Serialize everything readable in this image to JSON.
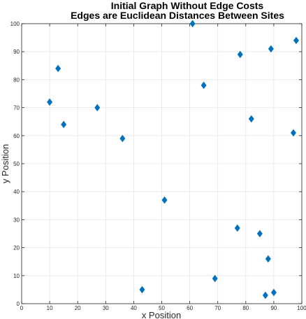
{
  "chart_data": {
    "type": "scatter",
    "title_lines": [
      "Initial Graph Without Edge Costs",
      "Edges are Euclidean Distances Between Sites"
    ],
    "xlabel": "x Position",
    "ylabel": "y Position",
    "xlim": [
      0,
      100
    ],
    "ylim": [
      0,
      100
    ],
    "x_ticks": [
      0,
      10,
      20,
      30,
      40,
      50,
      60,
      70,
      80,
      90,
      100
    ],
    "y_ticks": [
      0,
      10,
      20,
      30,
      40,
      50,
      60,
      70,
      80,
      90,
      100
    ],
    "grid": true,
    "marker": "diamond",
    "marker_color": "#0072BD",
    "points": [
      {
        "x": 61,
        "y": 100
      },
      {
        "x": 98,
        "y": 94
      },
      {
        "x": 89,
        "y": 91
      },
      {
        "x": 78,
        "y": 89
      },
      {
        "x": 13,
        "y": 84
      },
      {
        "x": 65,
        "y": 78
      },
      {
        "x": 10,
        "y": 72
      },
      {
        "x": 27,
        "y": 70
      },
      {
        "x": 82,
        "y": 66
      },
      {
        "x": 15,
        "y": 64
      },
      {
        "x": 97,
        "y": 61
      },
      {
        "x": 36,
        "y": 59
      },
      {
        "x": 51,
        "y": 37
      },
      {
        "x": 77,
        "y": 27
      },
      {
        "x": 85,
        "y": 25
      },
      {
        "x": 88,
        "y": 16
      },
      {
        "x": 69,
        "y": 9
      },
      {
        "x": 43,
        "y": 5
      },
      {
        "x": 90,
        "y": 4
      },
      {
        "x": 87,
        "y": 3
      }
    ]
  }
}
